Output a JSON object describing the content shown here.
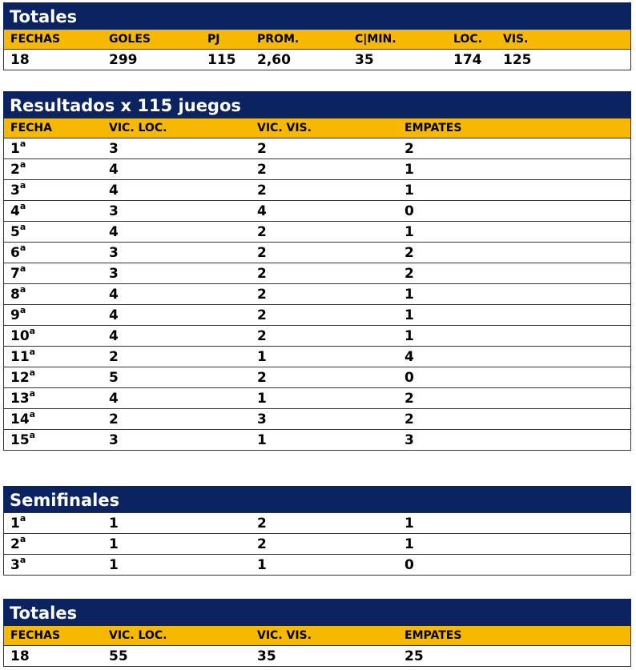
{
  "totales_top": {
    "title": "Totales",
    "headers": [
      "FECHAS",
      "GOLES",
      "PJ",
      "PROM.",
      "C|MIN.",
      "LOC.",
      "VIS."
    ],
    "values": [
      "18",
      "299",
      "115",
      "2,60",
      "35",
      "174",
      "125"
    ]
  },
  "resultados": {
    "title": "Resultados x 115 juegos",
    "headers": [
      "FECHA",
      "VIC. LOC.",
      "VIC. VIS.",
      "EMPATES"
    ],
    "rows": [
      {
        "fecha": "1",
        "sup": "a",
        "loc": "3",
        "vis": "2",
        "emp": "2"
      },
      {
        "fecha": "2",
        "sup": "a",
        "loc": "4",
        "vis": "2",
        "emp": "1"
      },
      {
        "fecha": "3",
        "sup": "a",
        "loc": "4",
        "vis": "2",
        "emp": "1"
      },
      {
        "fecha": "4",
        "sup": "a",
        "loc": "3",
        "vis": "4",
        "emp": "0"
      },
      {
        "fecha": "5",
        "sup": "a",
        "loc": "4",
        "vis": "2",
        "emp": "1"
      },
      {
        "fecha": "6",
        "sup": "a",
        "loc": "3",
        "vis": "2",
        "emp": "2"
      },
      {
        "fecha": "7",
        "sup": "a",
        "loc": "3",
        "vis": "2",
        "emp": "2"
      },
      {
        "fecha": "8",
        "sup": "a",
        "loc": "4",
        "vis": "2",
        "emp": "1"
      },
      {
        "fecha": "9",
        "sup": "a",
        "loc": "4",
        "vis": "2",
        "emp": "1"
      },
      {
        "fecha": "10",
        "sup": "a",
        "loc": "4",
        "vis": "2",
        "emp": "1"
      },
      {
        "fecha": "11",
        "sup": "a",
        "loc": "2",
        "vis": "1",
        "emp": "4"
      },
      {
        "fecha": "12",
        "sup": "a",
        "loc": "5",
        "vis": "2",
        "emp": "0"
      },
      {
        "fecha": "13",
        "sup": "a",
        "loc": "4",
        "vis": "1",
        "emp": "2"
      },
      {
        "fecha": "14",
        "sup": "a",
        "loc": "2",
        "vis": "3",
        "emp": "2"
      },
      {
        "fecha": "15",
        "sup": "a",
        "loc": "3",
        "vis": "1",
        "emp": "3"
      }
    ]
  },
  "semifinales": {
    "title": "Semifinales",
    "rows": [
      {
        "fecha": "1",
        "sup": "a",
        "loc": "1",
        "vis": "2",
        "emp": "1"
      },
      {
        "fecha": "2",
        "sup": "a",
        "loc": "1",
        "vis": "2",
        "emp": "1"
      },
      {
        "fecha": "3",
        "sup": "a",
        "loc": "1",
        "vis": "1",
        "emp": "0"
      }
    ]
  },
  "totales_bottom": {
    "title": "Totales",
    "headers": [
      "FECHAS",
      "VIC. LOC.",
      "VIC. VIS.",
      "EMPATES"
    ],
    "values": [
      "18",
      "55",
      "35",
      "25"
    ]
  },
  "colors": {
    "title_bg": "#0b2360",
    "header_bg": "#f7b800"
  }
}
